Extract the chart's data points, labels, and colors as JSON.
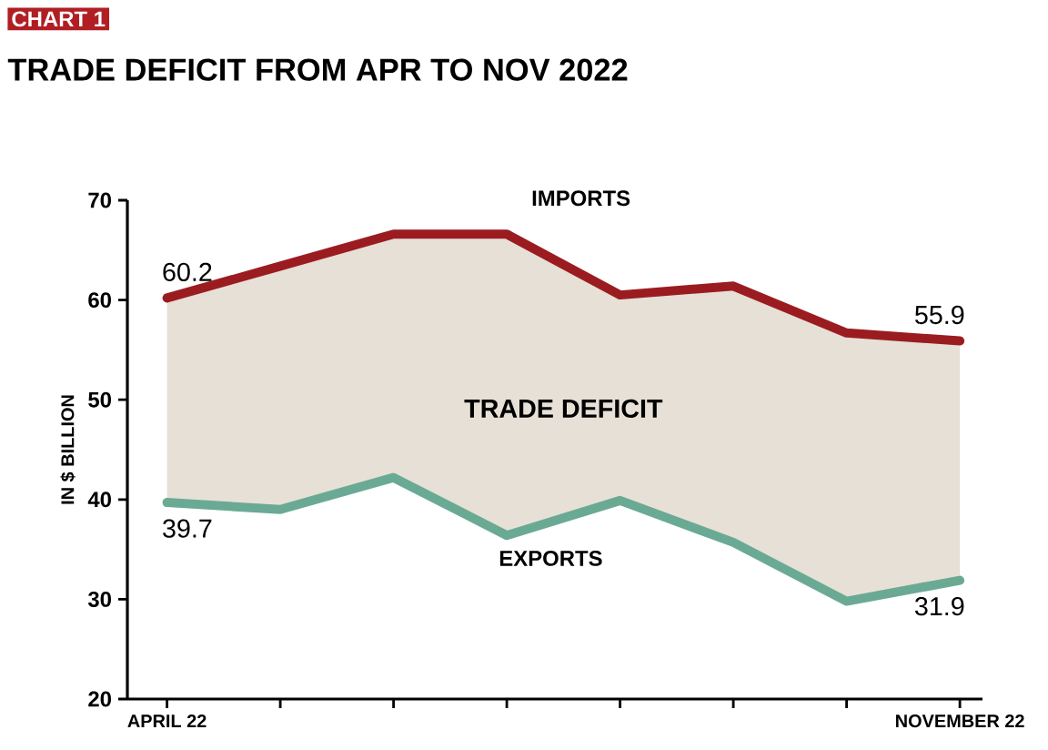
{
  "chart_data": {
    "type": "line",
    "title": "TRADE DEFICIT FROM APR TO NOV 2022",
    "ylabel": "IN $ BILLION",
    "annotations": [
      "CHART 1",
      "TRADE DEFICIT"
    ],
    "categories": [
      "APRIL 22",
      null,
      null,
      null,
      null,
      null,
      null,
      "NOVEMBER 22"
    ],
    "series": [
      {
        "name": "IMPORTS",
        "color": "#9b1c20",
        "values": [
          60.2,
          63.4,
          66.6,
          66.6,
          60.5,
          61.4,
          56.7,
          55.9
        ],
        "lower": [
          39.7,
          39.0,
          42.2,
          36.4,
          39.9,
          35.7,
          29.8,
          31.9
        ],
        "upper": [
          60.2,
          63.4,
          66.6,
          66.6,
          60.5,
          61.4,
          56.7,
          55.9
        ],
        "value_labels": [
          "60.2",
          null,
          null,
          null,
          null,
          null,
          null,
          "55.9"
        ]
      },
      {
        "name": "EXPORTS",
        "color": "#6aaa94",
        "values": [
          39.7,
          39.0,
          42.2,
          36.4,
          39.9,
          35.7,
          29.8,
          31.9
        ],
        "value_labels": [
          "39.7",
          null,
          null,
          null,
          null,
          null,
          null,
          "31.9"
        ]
      }
    ],
    "ylim": [
      20,
      70
    ],
    "yticks": [
      20,
      30,
      40,
      50,
      60,
      70
    ]
  }
}
